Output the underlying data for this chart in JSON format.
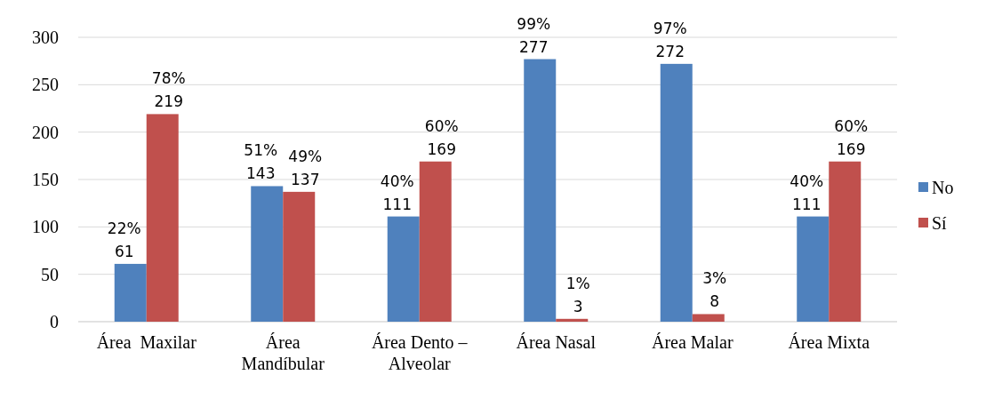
{
  "chart_data": {
    "type": "bar",
    "categories": [
      "Área  Maxilar",
      "Área\nMandíbular",
      "Área Dento –\nAlveolar",
      "Área Nasal",
      "Área Malar",
      "Área Mixta"
    ],
    "series": [
      {
        "name": "No",
        "color": "#4f81bd",
        "values": [
          61,
          143,
          111,
          277,
          272,
          111
        ],
        "value_labels": [
          "22%\n61",
          "51%\n143",
          "40%\n111",
          "99%\n277",
          "97%\n272",
          "40%\n111"
        ]
      },
      {
        "name": "Sí",
        "color": "#c0504d",
        "values": [
          219,
          137,
          169,
          3,
          8,
          169
        ],
        "value_labels": [
          "78%\n219",
          "49%\n137",
          "60%\n169",
          "1%\n3",
          "3%\n8",
          "60%\n169"
        ]
      }
    ],
    "ylim": [
      0,
      300
    ],
    "yticks": [
      0,
      50,
      100,
      150,
      200,
      250,
      300
    ],
    "grid": "y",
    "legend": "right"
  }
}
